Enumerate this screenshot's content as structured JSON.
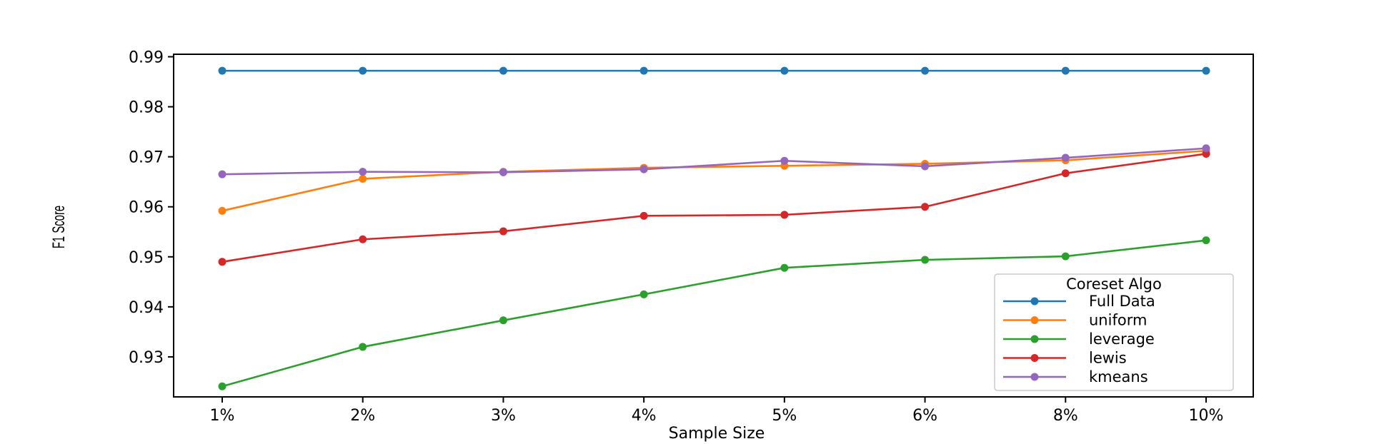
{
  "chart_data": {
    "type": "line",
    "categories": [
      "1%",
      "2%",
      "3%",
      "4%",
      "5%",
      "6%",
      "8%",
      "10%"
    ],
    "xlabel": "Sample Size",
    "ylabel": "F1 Score",
    "ylim": [
      0.922,
      0.9905
    ],
    "yticks": [
      0.93,
      0.94,
      0.95,
      0.96,
      0.97,
      0.98,
      0.99
    ],
    "ytick_labels": [
      "0.93",
      "0.94",
      "0.95",
      "0.96",
      "0.97",
      "0.98",
      "0.99"
    ],
    "grid": false,
    "legend": {
      "title": "Coreset Algo",
      "placement": "lower-right"
    },
    "series": [
      {
        "name": "Full Data",
        "color": "#1f77b4",
        "values": [
          0.9872,
          0.9872,
          0.9872,
          0.9872,
          0.9872,
          0.9872,
          0.9872,
          0.9872
        ]
      },
      {
        "name": "uniform",
        "color": "#ff7f0e",
        "values": [
          0.9592,
          0.9656,
          0.967,
          0.9678,
          0.9682,
          0.9686,
          0.9693,
          0.9712
        ]
      },
      {
        "name": "leverage",
        "color": "#2ca02c",
        "values": [
          0.9241,
          0.932,
          0.9373,
          0.9425,
          0.9478,
          0.9494,
          0.9501,
          0.9533
        ]
      },
      {
        "name": "lewis",
        "color": "#d62728",
        "values": [
          0.949,
          0.9535,
          0.9551,
          0.9582,
          0.9584,
          0.96,
          0.9667,
          0.9706
        ]
      },
      {
        "name": "kmeans",
        "color": "#9467bd",
        "values": [
          0.9665,
          0.967,
          0.9669,
          0.9675,
          0.9692,
          0.9681,
          0.9698,
          0.9717
        ]
      }
    ]
  }
}
